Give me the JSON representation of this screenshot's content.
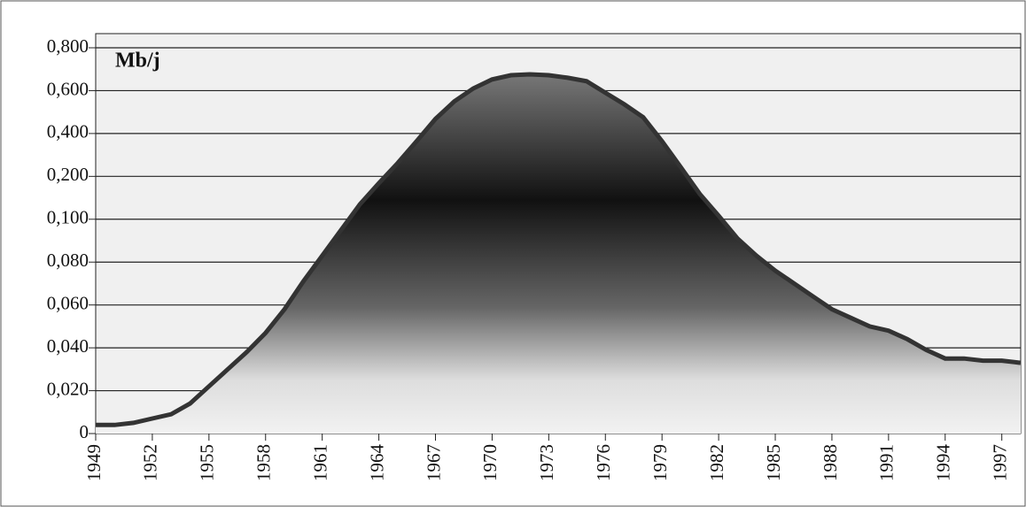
{
  "chart_data": {
    "type": "area",
    "title": "Mb/j",
    "x": [
      1949,
      1950,
      1951,
      1952,
      1953,
      1954,
      1955,
      1956,
      1957,
      1958,
      1959,
      1960,
      1961,
      1962,
      1963,
      1964,
      1965,
      1966,
      1967,
      1968,
      1969,
      1970,
      1971,
      1972,
      1973,
      1974,
      1975,
      1976,
      1977,
      1978,
      1979,
      1980,
      1981,
      1982,
      1983,
      1984,
      1985,
      1986,
      1987,
      1988,
      1989,
      1990,
      1991,
      1992,
      1993,
      1994,
      1995,
      1996,
      1997,
      1998
    ],
    "values": [
      0.004,
      0.004,
      0.005,
      0.007,
      0.009,
      0.014,
      0.022,
      0.03,
      0.038,
      0.047,
      0.058,
      0.071,
      0.083,
      0.095,
      0.135,
      0.184,
      0.262,
      0.364,
      0.468,
      0.55,
      0.61,
      0.652,
      0.672,
      0.676,
      0.672,
      0.66,
      0.644,
      0.59,
      0.536,
      0.476,
      0.364,
      0.242,
      0.159,
      0.108,
      0.091,
      0.083,
      0.076,
      0.07,
      0.064,
      0.058,
      0.054,
      0.05,
      0.048,
      0.044,
      0.039,
      0.035,
      0.035,
      0.034,
      0.034,
      0.033
    ],
    "color": "#333333",
    "xlim": [
      1949,
      1998
    ],
    "xticks": [
      1949,
      1952,
      1955,
      1958,
      1961,
      1964,
      1967,
      1970,
      1973,
      1976,
      1979,
      1982,
      1985,
      1988,
      1991,
      1994,
      1997
    ],
    "ylim": [
      0,
      0.8
    ],
    "yticks": [
      0,
      {
        "value": 0.02,
        "label": "0,020"
      },
      {
        "value": 0.04,
        "label": "0,040"
      },
      {
        "value": 0.06,
        "label": "0,060"
      },
      {
        "value": 0.08,
        "label": "0,080"
      },
      {
        "value": 0.1,
        "label": "0,100"
      },
      {
        "value": 0.2,
        "label": "0,200"
      },
      {
        "value": 0.4,
        "label": "0,400"
      },
      {
        "value": 0.6,
        "label": "0,600"
      },
      {
        "value": 0.8,
        "label": "0,800"
      }
    ],
    "grid": true
  }
}
